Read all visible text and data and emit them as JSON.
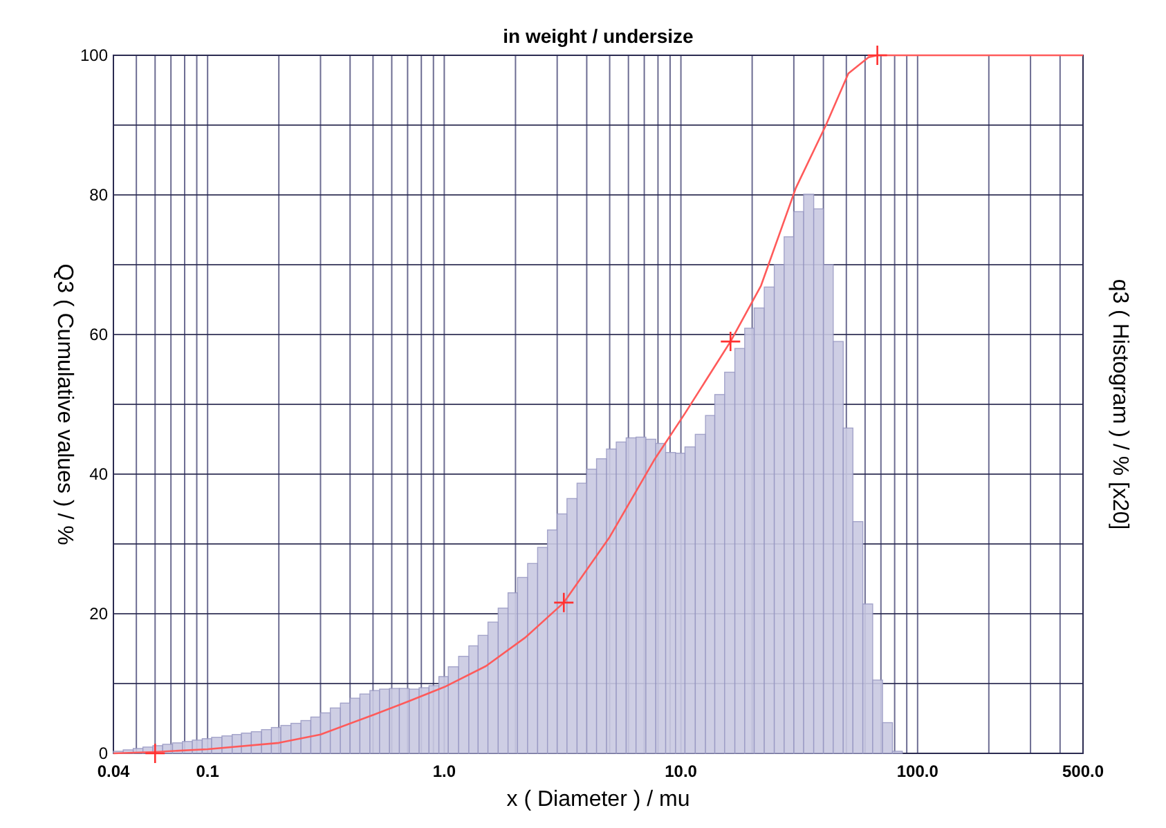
{
  "chart_data": {
    "type": "histogram",
    "title": "in weight / undersize",
    "xlabel": "x ( Diameter ) / mu",
    "ylabel": "Q3 ( Cumulative values ) / %",
    "y2label": "q3 ( Histogram ) / % [x20]",
    "log": "x",
    "grid": true,
    "xlim": [
      0.04,
      500
    ],
    "ylim": [
      0,
      100
    ],
    "xticks": [
      {
        "value": 0.04,
        "label": "0.04"
      },
      {
        "value": 0.05,
        "label": null
      },
      {
        "value": 0.06,
        "label": null
      },
      {
        "value": 0.07,
        "label": null
      },
      {
        "value": 0.08,
        "label": null
      },
      {
        "value": 0.09,
        "label": null
      },
      0.1,
      {
        "value": 0.2,
        "label": null
      },
      {
        "value": 0.3,
        "label": null
      },
      {
        "value": 0.4,
        "label": null
      },
      {
        "value": 0.5,
        "label": null
      },
      {
        "value": 0.6,
        "label": null
      },
      {
        "value": 0.7,
        "label": null
      },
      {
        "value": 0.8,
        "label": null
      },
      {
        "value": 0.9,
        "label": null
      },
      {
        "value": 1,
        "label": "1.0"
      },
      {
        "value": 2,
        "label": null
      },
      {
        "value": 3,
        "label": null
      },
      {
        "value": 4,
        "label": null
      },
      {
        "value": 5,
        "label": null
      },
      {
        "value": 6,
        "label": null
      },
      {
        "value": 7,
        "label": null
      },
      {
        "value": 8,
        "label": null
      },
      {
        "value": 9,
        "label": null
      },
      {
        "value": 10,
        "label": "10.0"
      },
      {
        "value": 20,
        "label": null
      },
      {
        "value": 30,
        "label": null
      },
      {
        "value": 40,
        "label": null
      },
      {
        "value": 50,
        "label": null
      },
      {
        "value": 60,
        "label": null
      },
      {
        "value": 70,
        "label": null
      },
      {
        "value": 80,
        "label": null
      },
      {
        "value": 90,
        "label": null
      },
      {
        "value": 100,
        "label": "100.0"
      },
      {
        "value": 200,
        "label": null
      },
      {
        "value": 300,
        "label": null
      },
      {
        "value": 400,
        "label": null
      },
      {
        "value": 500,
        "label": "500.0"
      }
    ],
    "yticks": [
      0,
      {
        "value": 10,
        "label": null
      },
      20,
      {
        "value": 30,
        "label": null
      },
      40,
      {
        "value": 50,
        "label": null
      },
      60,
      {
        "value": 70,
        "label": null
      },
      80,
      {
        "value": 90,
        "label": null
      },
      100
    ],
    "series": [
      {
        "type": "histogram",
        "color": "#c9c9e2",
        "bins": [
          0.04,
          0.044,
          0.0485,
          0.0533,
          0.0587,
          0.0646,
          0.0711,
          0.0783,
          0.0862,
          0.0949,
          0.104,
          0.115,
          0.127,
          0.139,
          0.153,
          0.169,
          0.186,
          0.204,
          0.225,
          0.248,
          0.273,
          0.3,
          0.33,
          0.364,
          0.4,
          0.44,
          0.485,
          0.533,
          0.587,
          0.646,
          0.711,
          0.783,
          0.862,
          0.949,
          1.04,
          1.15,
          1.27,
          1.39,
          1.53,
          1.69,
          1.86,
          2.04,
          2.25,
          2.48,
          2.73,
          3,
          3.3,
          3.64,
          4,
          4.4,
          4.85,
          5.33,
          5.87,
          6.46,
          7.11,
          7.83,
          8.62,
          9.49,
          10.4,
          11.5,
          12.7,
          13.9,
          15.3,
          16.9,
          18.6,
          20.4,
          22.5,
          24.8,
          27.3,
          30,
          33,
          36.4,
          40,
          44,
          48.5,
          53.3,
          58.7,
          64.6,
          71.1,
          78.3,
          86.2
        ],
        "values": [
          0.3,
          0.5,
          0.7,
          0.9,
          1.1,
          1.3,
          1.5,
          1.7,
          1.9,
          2.1,
          2.3,
          2.5,
          2.7,
          2.9,
          3.1,
          3.4,
          3.7,
          4.0,
          4.3,
          4.7,
          5.2,
          5.8,
          6.5,
          7.2,
          7.9,
          8.5,
          9.0,
          9.2,
          9.3,
          9.3,
          9.2,
          9.4,
          9.7,
          11,
          12.4,
          13.9,
          15.4,
          16.9,
          18.8,
          20.8,
          23,
          25.2,
          27.2,
          29.5,
          32,
          34.3,
          36.5,
          38.7,
          40.7,
          42.2,
          43.6,
          44.6,
          45.2,
          45.3,
          45,
          44.4,
          43.1,
          43,
          43.9,
          45.7,
          48.4,
          51.4,
          54.6,
          58,
          60.9,
          63.8,
          66.8,
          70,
          74,
          77.6,
          80.1,
          78,
          70,
          59,
          46.6,
          33.2,
          21.4,
          10.5,
          4.4,
          0.3
        ]
      },
      {
        "type": "line",
        "color": "#ff5a5a",
        "x": [
          0.04,
          0.06,
          0.1,
          0.2,
          0.3,
          0.5,
          0.7,
          1,
          1.5,
          2.2,
          3.2,
          5,
          7.7,
          10.4,
          16.2,
          21.8,
          30.6,
          41,
          51,
          62,
          67.6,
          500
        ],
        "values": [
          0,
          0.2,
          0.6,
          1.5,
          2.7,
          5.5,
          7.4,
          9.5,
          12.5,
          16.6,
          21.6,
          31,
          42,
          48.7,
          59,
          67,
          81,
          90,
          97.4,
          99.7,
          100,
          100
        ]
      },
      {
        "type": "scatter",
        "color": "#ff3030",
        "marker": "cross",
        "x": [
          0.06,
          3.2,
          16.2,
          67.6
        ],
        "values": [
          0,
          21.6,
          59,
          100
        ]
      }
    ]
  }
}
